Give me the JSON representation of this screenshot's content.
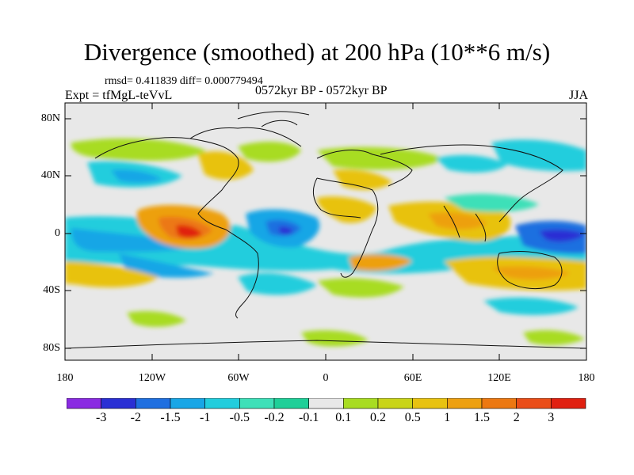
{
  "title": "Divergence (smoothed) at 200 hPa (10**6 m/s)",
  "stats": "rmsd= 0.411839 diff= 0.000779494",
  "experiment": "Expt = tfMgL-teVvL",
  "period": "0572kyr BP - 0572kyr BP",
  "season": "JJA",
  "y_ticks": [
    "80N",
    "40N",
    "0",
    "40S",
    "80S"
  ],
  "x_ticks": [
    "180",
    "120W",
    "60W",
    "0",
    "60E",
    "120E",
    "180"
  ],
  "colorbar": {
    "labels": [
      "-3",
      "-2",
      "-1.5",
      "-1",
      "-0.5",
      "-0.2",
      "-0.1",
      "0.1",
      "0.2",
      "0.5",
      "1",
      "1.5",
      "2",
      "3"
    ],
    "colors": [
      "#8a2be2",
      "#2a2fd4",
      "#1f6fe0",
      "#18a6e6",
      "#22cddd",
      "#3ee0b8",
      "#1fcf98",
      "#e8e8e8",
      "#a8dc22",
      "#c9d419",
      "#e8c210",
      "#eda010",
      "#ec7812",
      "#ea4d18",
      "#e02010"
    ]
  }
}
